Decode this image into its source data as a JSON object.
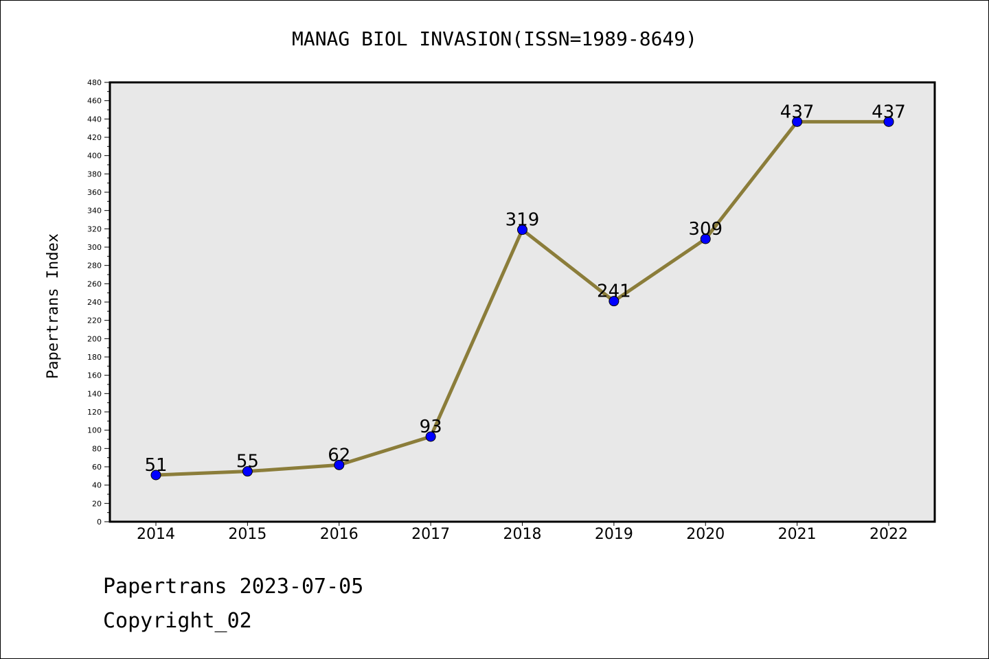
{
  "chart_data": {
    "type": "line",
    "title": "MANAG BIOL INVASION(ISSN=1989-8649)",
    "xlabel": "",
    "ylabel": "Papertrans Index",
    "categories": [
      "2014",
      "2015",
      "2016",
      "2017",
      "2018",
      "2019",
      "2020",
      "2021",
      "2022"
    ],
    "values": [
      51,
      55,
      62,
      93,
      319,
      241,
      309,
      437,
      437
    ],
    "data_labels": [
      "51",
      "55",
      "62",
      "93",
      "319",
      "241",
      "309",
      "437",
      "437"
    ],
    "ylim": [
      0,
      480
    ],
    "yticks": [
      "0",
      "20",
      "40",
      "60",
      "80",
      "100",
      "120",
      "140",
      "160",
      "180",
      "200",
      "220",
      "240",
      "260",
      "280",
      "300",
      "320",
      "340",
      "360",
      "380",
      "400",
      "420",
      "440",
      "460",
      "480"
    ],
    "grid": false,
    "line_color": "#8b7d3a",
    "marker_color": "#0000ff",
    "plot_background": "#e8e8e8"
  },
  "footer": {
    "line1": "Papertrans 2023-07-05",
    "line2": "Copyright_02"
  }
}
